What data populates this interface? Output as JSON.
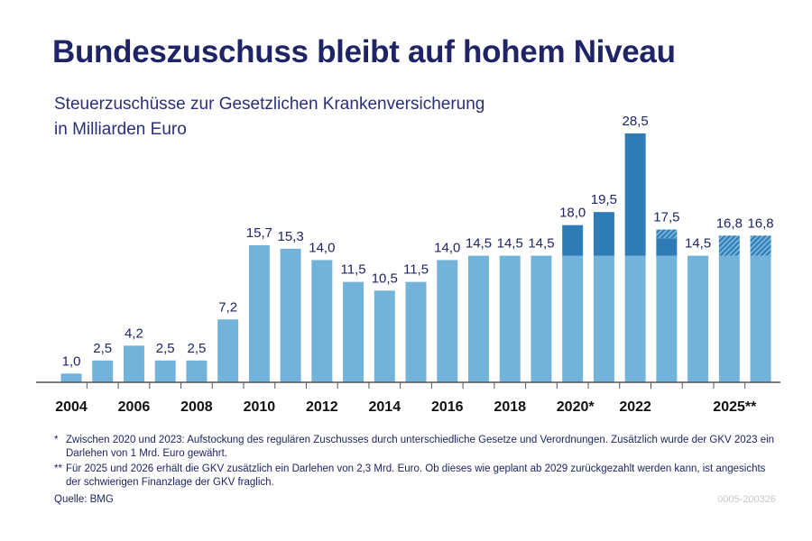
{
  "title": "Bundeszuschuss bleibt auf hohem Niveau",
  "subtitle_line1": "Steuerzuschüsse zur Gesetzlichen Krankenversicherung",
  "subtitle_line2": "in Milliarden Euro",
  "footnotes": [
    {
      "mark": "*",
      "text": "Zwischen 2020 und 2023: Aufstockung des regulären Zuschusses durch unterschiedliche Gesetze und Verordnungen. Zusätzlich wurde der GKV 2023 ein Darlehen von 1 Mrd. Euro gewährt."
    },
    {
      "mark": "**",
      "text": "Für 2025 und 2026 erhält die GKV zusätzlich ein Darlehen von 2,3 Mrd. Euro. Ob dieses wie geplant ab 2029 zurückgezahlt werden kann, ist angesichts der schwierigen Finanzlage der GKV fraglich."
    }
  ],
  "source": "Quelle: BMG",
  "code": "0005-200326",
  "colors": {
    "regular": "#74b3d9",
    "increase": "#2f7bb5",
    "loan_hatch": "#2f7bb5",
    "text": "#1f2466"
  },
  "chart_data": {
    "type": "bar",
    "stacked": true,
    "categories": [
      "2004",
      "2005",
      "2006",
      "2007",
      "2008",
      "2009",
      "2010",
      "2011",
      "2012",
      "2013",
      "2014",
      "2015",
      "2016",
      "2017",
      "2018",
      "2019",
      "2020",
      "2021",
      "2022",
      "2023",
      "2024",
      "2025",
      "2026"
    ],
    "tick_labels": {
      "2004": "2004",
      "2006": "2006",
      "2008": "2008",
      "2010": "2010",
      "2012": "2012",
      "2014": "2014",
      "2016": "2016",
      "2018": "2018",
      "2020": "2020*",
      "2022": "2022",
      "2025": "2025**"
    },
    "series": [
      {
        "key": "regular",
        "values": [
          1.0,
          2.5,
          4.2,
          2.5,
          2.5,
          7.2,
          15.7,
          15.3,
          14.0,
          11.5,
          10.5,
          11.5,
          14.0,
          14.5,
          14.5,
          14.5,
          14.5,
          14.5,
          14.5,
          14.5,
          14.5,
          14.5,
          14.5
        ]
      },
      {
        "key": "increase",
        "values": [
          0,
          0,
          0,
          0,
          0,
          0,
          0,
          0,
          0,
          0,
          0,
          0,
          0,
          0,
          0,
          0,
          3.5,
          5.0,
          14.0,
          2.0,
          0,
          0,
          0
        ]
      },
      {
        "key": "loan",
        "pattern": "hatched",
        "values": [
          0,
          0,
          0,
          0,
          0,
          0,
          0,
          0,
          0,
          0,
          0,
          0,
          0,
          0,
          0,
          0,
          0,
          0,
          0,
          1.0,
          0,
          2.3,
          2.3
        ]
      }
    ],
    "data_labels": [
      "1,0",
      "2,5",
      "4,2",
      "2,5",
      "2,5",
      "7,2",
      "15,7",
      "15,3",
      "14,0",
      "11,5",
      "10,5",
      "11,5",
      "14,0",
      "14,5",
      "14,5",
      "14,5",
      "18,0",
      "19,5",
      "28,5",
      "17,5",
      "14,5",
      "16,8",
      "16,8"
    ],
    "ylim": [
      0,
      28.5
    ],
    "grid": false,
    "legend": "none"
  }
}
